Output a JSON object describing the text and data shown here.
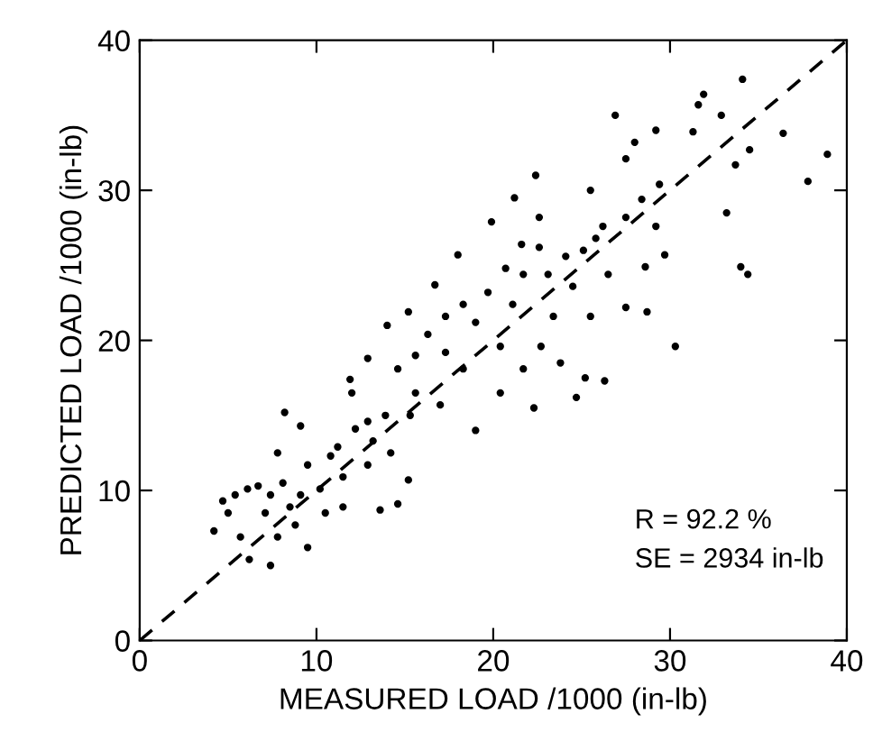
{
  "chart_data": {
    "type": "scatter",
    "xlabel": "MEASURED LOAD /1000 (in-lb)",
    "ylabel": "PREDICTED LOAD /1000 (in-lb)",
    "xlim": [
      0,
      40
    ],
    "ylim": [
      0,
      40
    ],
    "xticks": [
      0,
      10,
      20,
      30,
      40
    ],
    "yticks": [
      0,
      10,
      20,
      30,
      40
    ],
    "grid": false,
    "legend": false,
    "annotations": [
      "R = 92.2 %",
      "SE = 2934 in-lb"
    ],
    "series": [
      {
        "marker": "circle",
        "color": "#000000",
        "x": [
          34.1,
          31.9,
          31.6,
          26.9,
          32.9,
          29.2,
          31.3,
          36.4,
          28.0,
          34.5,
          38.9,
          27.5,
          33.7,
          22.4,
          37.8,
          29.4,
          25.5,
          21.2,
          28.4,
          33.2,
          22.6,
          19.9,
          27.5,
          29.2,
          34.0,
          34.4,
          30.3,
          18.0,
          22.6,
          25.1,
          29.7,
          28.6,
          27.5,
          28.7,
          26.3,
          25.2,
          24.7,
          22.3,
          19.0,
          16.7,
          15.2,
          14.0,
          12.9,
          11.9,
          8.2,
          9.1,
          12.0,
          4.2,
          6.2,
          7.4,
          9.5,
          14.6,
          13.6,
          15.2,
          23.4,
          24.5,
          20.7,
          21.6,
          19.7,
          18.3,
          16.3,
          17.3,
          14.6,
          15.6,
          18.3,
          20.4,
          22.7,
          21.7,
          23.8,
          13.9,
          12.2,
          14.2,
          11.2,
          9.5,
          8.1,
          6.1,
          5.0,
          7.1,
          8.5,
          10.2,
          11.5,
          12.9,
          10.5,
          7.8,
          5.7,
          4.7,
          6.7,
          8.8,
          10.8,
          12.9,
          15.3,
          17.0,
          17.3,
          19.0,
          21.1,
          21.7,
          23.1,
          24.1,
          25.8,
          26.5,
          25.5,
          26.2,
          7.8,
          5.4,
          9.1,
          7.4,
          11.5,
          13.2,
          15.6,
          20.4
        ],
        "values": [
          37.4,
          36.4,
          35.7,
          35.0,
          35.0,
          34.0,
          33.9,
          33.8,
          33.2,
          32.7,
          32.4,
          32.1,
          31.7,
          31.0,
          30.6,
          30.4,
          30.0,
          29.5,
          29.4,
          28.5,
          28.2,
          27.9,
          28.2,
          27.6,
          24.9,
          24.4,
          19.6,
          25.7,
          26.2,
          26.0,
          25.7,
          24.9,
          22.2,
          21.9,
          17.3,
          17.5,
          16.2,
          15.5,
          14.0,
          23.7,
          21.9,
          21.0,
          18.8,
          17.4,
          15.2,
          14.3,
          16.5,
          7.3,
          5.4,
          5.0,
          6.2,
          9.1,
          8.7,
          10.7,
          21.6,
          23.6,
          24.8,
          26.4,
          23.2,
          22.4,
          20.4,
          19.2,
          18.1,
          16.5,
          18.1,
          19.6,
          19.6,
          18.1,
          18.5,
          15.0,
          14.1,
          12.5,
          12.9,
          11.7,
          10.5,
          10.1,
          8.5,
          8.5,
          8.9,
          10.1,
          10.9,
          11.7,
          8.5,
          6.9,
          6.9,
          9.3,
          10.3,
          7.7,
          12.3,
          14.6,
          15.0,
          15.7,
          21.6,
          21.2,
          22.4,
          24.4,
          24.4,
          25.6,
          26.8,
          24.4,
          21.6,
          27.6,
          12.5,
          9.7,
          9.7,
          9.7,
          8.9,
          13.3,
          19.0,
          16.5
        ]
      },
      {
        "type": "line",
        "color": "#000000",
        "line_style": "dashed",
        "marker": "none",
        "x": [
          0,
          40
        ],
        "values": [
          0,
          40
        ]
      }
    ]
  }
}
